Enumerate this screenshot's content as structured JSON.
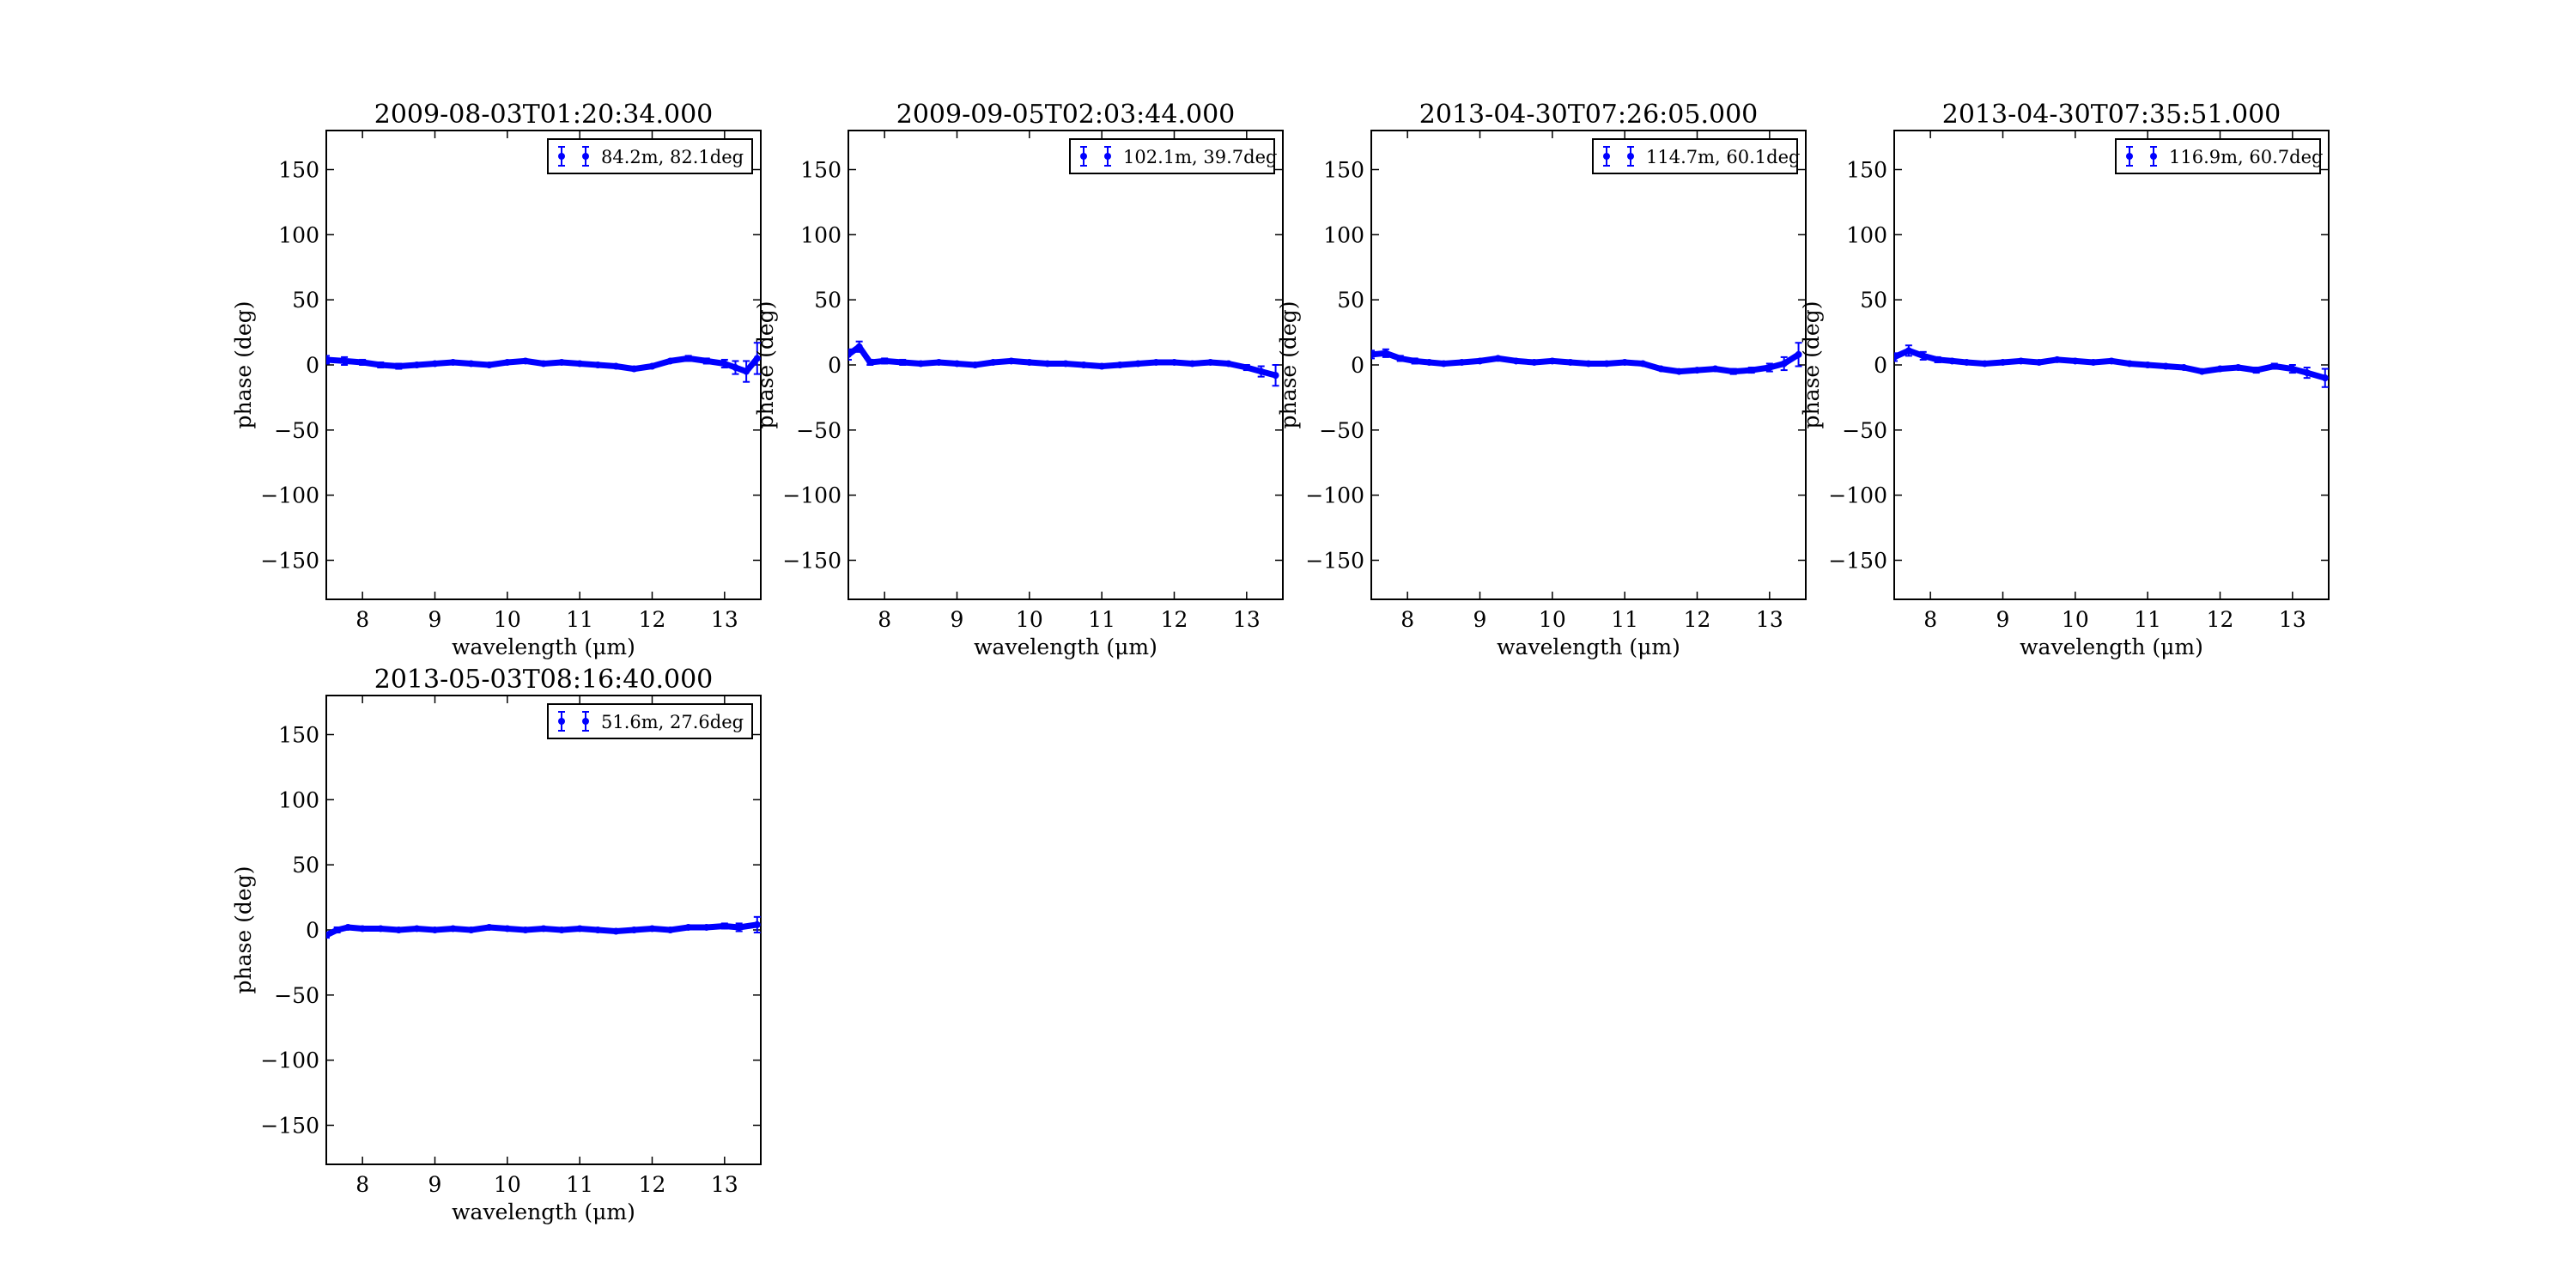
{
  "chart_data": [
    {
      "type": "scatter",
      "title": "2009-08-03T01:20:34.000",
      "xlabel": "wavelength (μm)",
      "ylabel": "phase (deg)",
      "xlim": [
        7.5,
        13.5
      ],
      "ylim": [
        -180,
        180
      ],
      "xticks": [
        8,
        9,
        10,
        11,
        12,
        13
      ],
      "yticks": [
        -150,
        -100,
        -50,
        0,
        50,
        100,
        150
      ],
      "legend": "upper right",
      "series": [
        {
          "name": "84.2m, 82.1deg",
          "color": "#0000ff",
          "x": [
            7.5,
            7.75,
            8.0,
            8.25,
            8.5,
            8.75,
            9.0,
            9.25,
            9.5,
            9.75,
            10.0,
            10.25,
            10.5,
            10.75,
            11.0,
            11.25,
            11.5,
            11.75,
            12.0,
            12.25,
            12.5,
            12.75,
            13.0,
            13.15,
            13.3,
            13.45
          ],
          "y": [
            4,
            3,
            2,
            0,
            -1,
            0,
            1,
            2,
            1,
            0,
            2,
            3,
            1,
            2,
            1,
            0,
            -1,
            -3,
            -1,
            3,
            5,
            3,
            1,
            -2,
            -5,
            5
          ],
          "yerr": [
            3,
            3,
            2,
            2,
            2,
            1,
            1,
            1,
            1,
            1,
            1,
            1,
            1,
            1,
            1,
            1,
            1,
            1,
            1,
            1,
            2,
            2,
            3,
            5,
            8,
            12
          ]
        }
      ]
    },
    {
      "type": "scatter",
      "title": "2009-09-05T02:03:44.000",
      "xlabel": "wavelength (μm)",
      "ylabel": "phase (deg)",
      "xlim": [
        7.5,
        13.5
      ],
      "ylim": [
        -180,
        180
      ],
      "xticks": [
        8,
        9,
        10,
        11,
        12,
        13
      ],
      "yticks": [
        -150,
        -100,
        -50,
        0,
        50,
        100,
        150
      ],
      "legend": "upper right",
      "series": [
        {
          "name": "102.1m, 39.7deg",
          "color": "#0000ff",
          "x": [
            7.5,
            7.65,
            7.8,
            8.0,
            8.25,
            8.5,
            8.75,
            9.0,
            9.25,
            9.5,
            9.75,
            10.0,
            10.25,
            10.5,
            10.75,
            11.0,
            11.25,
            11.5,
            11.75,
            12.0,
            12.25,
            12.5,
            12.75,
            13.0,
            13.2,
            13.4
          ],
          "y": [
            8,
            14,
            2,
            3,
            2,
            1,
            2,
            1,
            0,
            2,
            3,
            2,
            1,
            1,
            0,
            -1,
            0,
            1,
            2,
            2,
            1,
            2,
            1,
            -2,
            -5,
            -8
          ],
          "yerr": [
            4,
            4,
            2,
            2,
            2,
            1,
            1,
            1,
            1,
            1,
            1,
            1,
            1,
            1,
            1,
            1,
            1,
            1,
            1,
            1,
            1,
            1,
            1,
            2,
            4,
            8
          ]
        }
      ]
    },
    {
      "type": "scatter",
      "title": "2013-04-30T07:26:05.000",
      "xlabel": "wavelength (μm)",
      "ylabel": "phase (deg)",
      "xlim": [
        7.5,
        13.5
      ],
      "ylim": [
        -180,
        180
      ],
      "xticks": [
        8,
        9,
        10,
        11,
        12,
        13
      ],
      "yticks": [
        -150,
        -100,
        -50,
        0,
        50,
        100,
        150
      ],
      "legend": "upper right",
      "series": [
        {
          "name": "114.7m, 60.1deg",
          "color": "#0000ff",
          "x": [
            7.5,
            7.7,
            7.9,
            8.1,
            8.3,
            8.5,
            8.75,
            9.0,
            9.25,
            9.5,
            9.75,
            10.0,
            10.25,
            10.5,
            10.75,
            11.0,
            11.25,
            11.5,
            11.75,
            12.0,
            12.25,
            12.5,
            12.75,
            13.0,
            13.2,
            13.4
          ],
          "y": [
            8,
            9,
            5,
            3,
            2,
            1,
            2,
            3,
            5,
            3,
            2,
            3,
            2,
            1,
            1,
            2,
            1,
            -3,
            -5,
            -4,
            -3,
            -5,
            -4,
            -2,
            1,
            8
          ],
          "yerr": [
            3,
            3,
            2,
            2,
            1,
            1,
            1,
            1,
            1,
            1,
            1,
            1,
            1,
            1,
            1,
            1,
            1,
            1,
            1,
            1,
            1,
            2,
            2,
            3,
            5,
            9
          ]
        }
      ]
    },
    {
      "type": "scatter",
      "title": "2013-04-30T07:35:51.000",
      "xlabel": "wavelength (μm)",
      "ylabel": "phase (deg)",
      "xlim": [
        7.5,
        13.5
      ],
      "ylim": [
        -180,
        180
      ],
      "xticks": [
        8,
        9,
        10,
        11,
        12,
        13
      ],
      "yticks": [
        -150,
        -100,
        -50,
        0,
        50,
        100,
        150
      ],
      "legend": "upper right",
      "series": [
        {
          "name": "116.9m, 60.7deg",
          "color": "#0000ff",
          "x": [
            7.5,
            7.7,
            7.9,
            8.1,
            8.3,
            8.5,
            8.75,
            9.0,
            9.25,
            9.5,
            9.75,
            10.0,
            10.25,
            10.5,
            10.75,
            11.0,
            11.25,
            11.5,
            11.75,
            12.0,
            12.25,
            12.5,
            12.75,
            13.0,
            13.2,
            13.45
          ],
          "y": [
            6,
            11,
            7,
            4,
            3,
            2,
            1,
            2,
            3,
            2,
            4,
            3,
            2,
            3,
            1,
            0,
            -1,
            -2,
            -5,
            -3,
            -2,
            -4,
            -1,
            -3,
            -6,
            -10
          ],
          "yerr": [
            3,
            4,
            3,
            2,
            1,
            1,
            1,
            1,
            1,
            1,
            1,
            1,
            1,
            1,
            1,
            1,
            1,
            1,
            1,
            1,
            1,
            2,
            2,
            3,
            4,
            7
          ]
        }
      ]
    },
    {
      "type": "scatter",
      "title": "2013-05-03T08:16:40.000",
      "xlabel": "wavelength (μm)",
      "ylabel": "phase (deg)",
      "xlim": [
        7.5,
        13.5
      ],
      "ylim": [
        -180,
        180
      ],
      "xticks": [
        8,
        9,
        10,
        11,
        12,
        13
      ],
      "yticks": [
        -150,
        -100,
        -50,
        0,
        50,
        100,
        150
      ],
      "legend": "upper right",
      "series": [
        {
          "name": "51.6m, 27.6deg",
          "color": "#0000ff",
          "x": [
            7.5,
            7.65,
            7.8,
            8.0,
            8.25,
            8.5,
            8.75,
            9.0,
            9.25,
            9.5,
            9.75,
            10.0,
            10.25,
            10.5,
            10.75,
            11.0,
            11.25,
            11.5,
            11.75,
            12.0,
            12.25,
            12.5,
            12.75,
            13.0,
            13.2,
            13.45
          ],
          "y": [
            -4,
            0,
            2,
            1,
            1,
            0,
            1,
            0,
            1,
            0,
            2,
            1,
            0,
            1,
            0,
            1,
            0,
            -1,
            0,
            1,
            0,
            2,
            2,
            3,
            2,
            4
          ],
          "yerr": [
            2,
            2,
            1,
            1,
            1,
            1,
            1,
            1,
            1,
            1,
            1,
            1,
            1,
            1,
            1,
            1,
            1,
            1,
            1,
            1,
            1,
            1,
            1,
            2,
            3,
            6
          ]
        }
      ]
    }
  ]
}
